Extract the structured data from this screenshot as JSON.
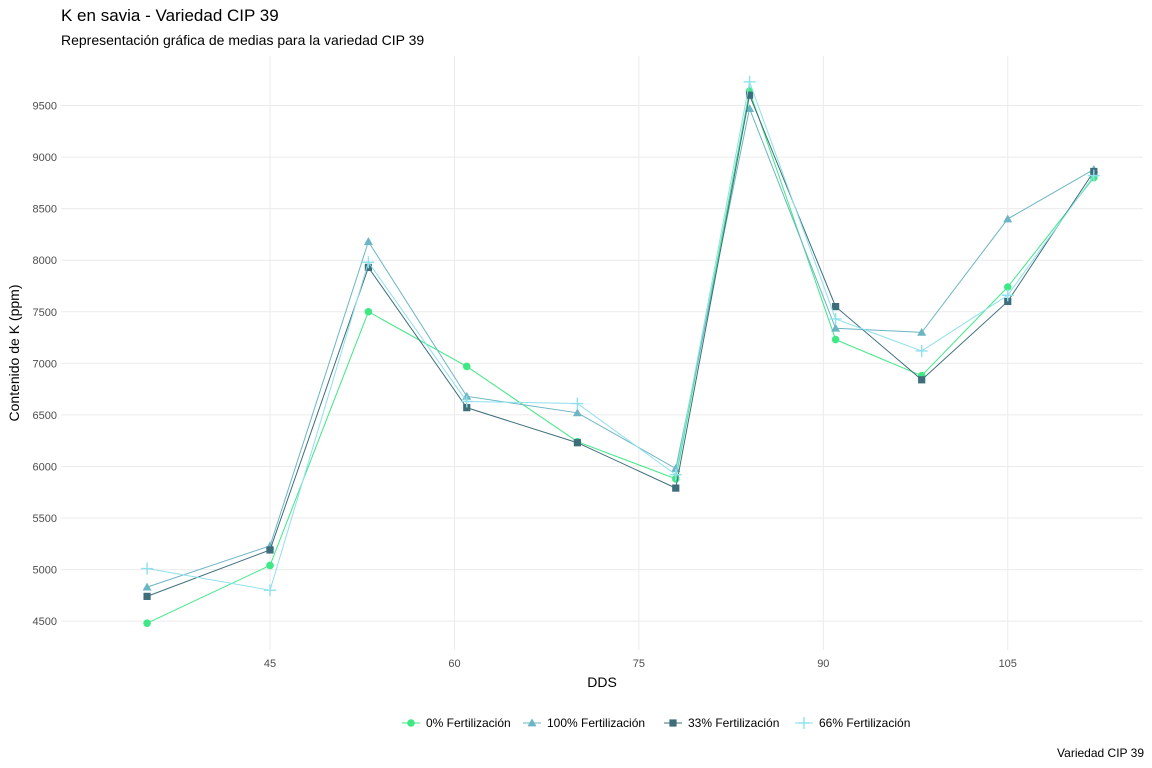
{
  "chart_data": {
    "type": "line",
    "title": "K en savia - Variedad CIP 39",
    "subtitle": "Representación gráfica de medias para la variedad CIP 39",
    "xlabel": "DDS",
    "ylabel": "Contenido de K (ppm)",
    "caption": "Variedad CIP 39",
    "x": [
      35,
      45,
      53,
      61,
      70,
      78,
      84,
      91,
      98,
      105,
      112
    ],
    "x_ticks": [
      45,
      60,
      75,
      90,
      105
    ],
    "y_ticks": [
      4500,
      5000,
      5500,
      6000,
      6500,
      7000,
      7500,
      8000,
      8500,
      9000,
      9500
    ],
    "xlim": [
      28,
      116
    ],
    "ylim": [
      4220,
      9980
    ],
    "grid": true,
    "legend_position": "bottom",
    "series": [
      {
        "name": "0% Fertilización",
        "color": "#3ee884",
        "marker": "circle",
        "values": [
          4480,
          5040,
          7500,
          6970,
          6240,
          5880,
          9640,
          7230,
          6880,
          7740,
          8800
        ]
      },
      {
        "name": "100% Fertilización",
        "color": "#6bb5c4",
        "marker": "triangle",
        "values": [
          4830,
          5230,
          8180,
          6680,
          6520,
          5980,
          9470,
          7340,
          7300,
          8400,
          8880
        ]
      },
      {
        "name": "33% Fertilización",
        "color": "#3e6e7a",
        "marker": "square",
        "values": [
          4740,
          5190,
          7930,
          6570,
          6230,
          5790,
          9600,
          7550,
          6840,
          7600,
          8860
        ]
      },
      {
        "name": "66% Fertilización",
        "color": "#8fe0ec",
        "marker": "plus",
        "values": [
          5010,
          4800,
          7980,
          6630,
          6610,
          5920,
          9730,
          7430,
          7120,
          7660,
          8820
        ]
      }
    ]
  }
}
